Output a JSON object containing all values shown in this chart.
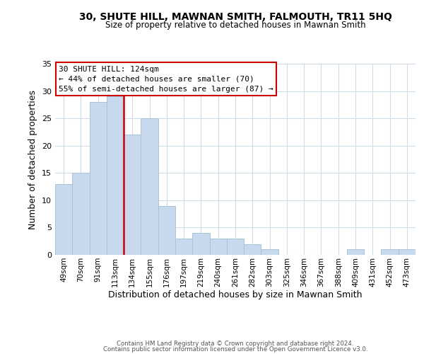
{
  "title": "30, SHUTE HILL, MAWNAN SMITH, FALMOUTH, TR11 5HQ",
  "subtitle": "Size of property relative to detached houses in Mawnan Smith",
  "xlabel": "Distribution of detached houses by size in Mawnan Smith",
  "ylabel": "Number of detached properties",
  "bar_color": "#c8d9ed",
  "bar_edge_color": "#a8c4dc",
  "bins": [
    "49sqm",
    "70sqm",
    "91sqm",
    "113sqm",
    "134sqm",
    "155sqm",
    "176sqm",
    "197sqm",
    "219sqm",
    "240sqm",
    "261sqm",
    "282sqm",
    "303sqm",
    "325sqm",
    "346sqm",
    "367sqm",
    "388sqm",
    "409sqm",
    "431sqm",
    "452sqm",
    "473sqm"
  ],
  "counts": [
    13,
    15,
    28,
    29,
    22,
    25,
    9,
    3,
    4,
    3,
    3,
    2,
    1,
    0,
    0,
    0,
    0,
    1,
    0,
    1,
    1
  ],
  "vline_color": "#cc0000",
  "ylim": [
    0,
    35
  ],
  "yticks": [
    0,
    5,
    10,
    15,
    20,
    25,
    30,
    35
  ],
  "annotation_title": "30 SHUTE HILL: 124sqm",
  "annotation_line1": "← 44% of detached houses are smaller (70)",
  "annotation_line2": "55% of semi-detached houses are larger (87) →",
  "annotation_box_color": "#ffffff",
  "annotation_box_edge": "#cc0000",
  "footer1": "Contains HM Land Registry data © Crown copyright and database right 2024.",
  "footer2": "Contains public sector information licensed under the Open Government Licence v3.0.",
  "background_color": "#ffffff",
  "grid_color": "#d0dce8"
}
